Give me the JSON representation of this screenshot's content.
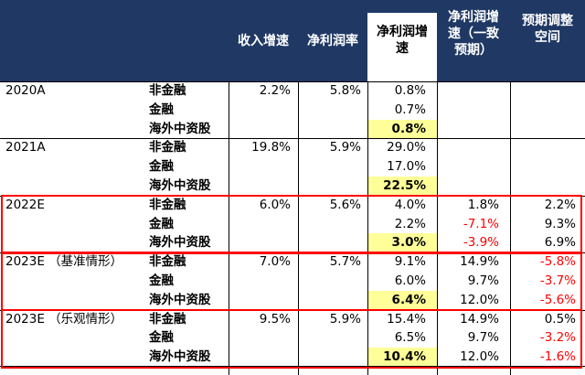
{
  "headers": [
    "收入增速",
    "净利润率",
    "净利润增速",
    "净利润增速（一致预期）",
    "预期调整空间"
  ],
  "header_lines": {
    "c2": [
      "收入增速"
    ],
    "c3": [
      "净利润率"
    ],
    "c4": [
      "净利润增",
      "速"
    ],
    "c5": [
      "净利润增",
      "速（一致",
      "预期）"
    ],
    "c6": [
      "预期调整",
      "空间"
    ]
  },
  "groups": [
    {
      "label": "2020A",
      "rows": [
        {
          "sub": "非金融",
          "c2": "2.2%",
          "c3": "5.8%",
          "c4": "0.8%",
          "c5": "",
          "c6": ""
        },
        {
          "sub": "金融",
          "c2": "",
          "c3": "",
          "c4": "0.7%",
          "c5": "",
          "c6": ""
        },
        {
          "sub": "海外中资股",
          "c2": "",
          "c3": "",
          "c4": "0.8%",
          "c5": "",
          "c6": ""
        }
      ]
    },
    {
      "label": "2021A",
      "rows": [
        {
          "sub": "非金融",
          "c2": "19.8%",
          "c3": "5.9%",
          "c4": "29.0%",
          "c5": "",
          "c6": ""
        },
        {
          "sub": "金融",
          "c2": "",
          "c3": "",
          "c4": "17.0%",
          "c5": "",
          "c6": ""
        },
        {
          "sub": "海外中资股",
          "c2": "",
          "c3": "",
          "c4": "22.5%",
          "c5": "",
          "c6": ""
        }
      ]
    },
    {
      "label": "2022E",
      "rows": [
        {
          "sub": "非金融",
          "c2": "6.0%",
          "c3": "5.6%",
          "c4": "4.0%",
          "c5": "1.8%",
          "c6": "2.2%"
        },
        {
          "sub": "金融",
          "c2": "",
          "c3": "",
          "c4": "2.2%",
          "c5": "-7.1%",
          "c6": "9.3%"
        },
        {
          "sub": "海外中资股",
          "c2": "",
          "c3": "",
          "c4": "3.0%",
          "c5": "-3.9%",
          "c6": "6.9%"
        }
      ]
    },
    {
      "label": "2023E （基准情形）",
      "rows": [
        {
          "sub": "非金融",
          "c2": "7.0%",
          "c3": "5.7%",
          "c4": "9.1%",
          "c5": "14.9%",
          "c6": "-5.8%"
        },
        {
          "sub": "金融",
          "c2": "",
          "c3": "",
          "c4": "6.0%",
          "c5": "9.7%",
          "c6": "-3.7%"
        },
        {
          "sub": "海外中资股",
          "c2": "",
          "c3": "",
          "c4": "6.4%",
          "c5": "12.0%",
          "c6": "-5.6%"
        }
      ]
    },
    {
      "label": "2023E （乐观情形）",
      "rows": [
        {
          "sub": "非金融",
          "c2": "9.5%",
          "c3": "5.9%",
          "c4": "15.4%",
          "c5": "14.9%",
          "c6": "0.5%"
        },
        {
          "sub": "金融",
          "c2": "",
          "c3": "",
          "c4": "6.5%",
          "c5": "9.7%",
          "c6": "-3.2%"
        },
        {
          "sub": "海外中资股",
          "c2": "",
          "c3": "",
          "c4": "10.4%",
          "c5": "12.0%",
          "c6": "-1.6%"
        }
      ]
    }
  ],
  "colors": {
    "header_bg": "#1f3864",
    "highlight": "#ffff99",
    "negative": "#ff0000",
    "box": "#ff0000"
  }
}
